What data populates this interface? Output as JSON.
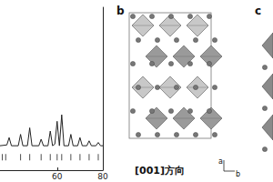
{
  "chart_data": {
    "type": "line",
    "color": "#222222",
    "xlim": [
      35,
      80
    ],
    "xticks": [
      60,
      80
    ],
    "ylim": [
      0,
      100
    ],
    "yticks": [],
    "tick_labels": "x",
    "series": [
      {
        "type": "line",
        "color": "#222222",
        "x": [
          35,
          38,
          39,
          40,
          43,
          44,
          45,
          47,
          48,
          49,
          52,
          53,
          54,
          56,
          57,
          58,
          59,
          60,
          61,
          62,
          63,
          65,
          66,
          67,
          69,
          70,
          71,
          73,
          74,
          75,
          77,
          78,
          79,
          80
        ],
        "values": [
          15,
          15.5,
          20,
          15,
          15,
          22,
          15,
          15,
          26,
          15,
          15,
          19,
          15,
          15,
          24,
          15,
          16,
          30,
          15,
          34,
          15,
          15,
          22,
          15,
          15,
          20,
          15,
          15,
          18,
          15,
          15,
          17,
          15,
          15
        ]
      },
      {
        "type": "scatter",
        "color": "#222222",
        "marker": "vline",
        "x": [
          36,
          37.5,
          44,
          48,
          53,
          57,
          60,
          62,
          66,
          70,
          74,
          78
        ],
        "values": [
          8,
          8,
          8,
          8,
          8,
          8,
          8,
          8,
          8,
          8,
          8,
          8
        ]
      }
    ]
  },
  "diagram": {
    "panels": [
      {
        "label": "b",
        "caption": "[001]方向",
        "axes": [
          "a",
          "b"
        ]
      },
      {
        "label": "c"
      }
    ]
  }
}
